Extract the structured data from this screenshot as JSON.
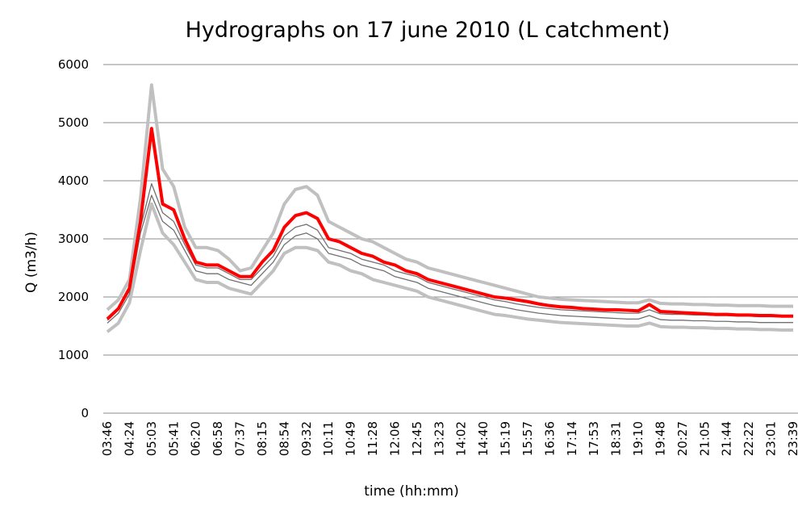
{
  "chart_data": {
    "type": "line",
    "title": "Hydrographs on 17 june 2010 (L catchment)",
    "y_label": "Q (m3/h)",
    "x_label": "time (hh:mm)",
    "categories": [
      "03:46",
      null,
      "04:24",
      null,
      "05:03",
      null,
      "05:41",
      null,
      "06:20",
      null,
      "06:58",
      null,
      "07:37",
      null,
      "08:15",
      null,
      "08:54",
      null,
      "09:32",
      null,
      "10:11",
      null,
      "10:49",
      null,
      "11:28",
      null,
      "12:06",
      null,
      "12:45",
      null,
      "13:23",
      null,
      "14:02",
      null,
      "14:40",
      null,
      "15:19",
      null,
      "15:57",
      null,
      "16:36",
      null,
      "17:14",
      null,
      "17:53",
      null,
      "18:31",
      null,
      "19:10",
      null,
      "19:48",
      null,
      "20:27",
      null,
      "21:05",
      null,
      "21:44",
      null,
      "22:22",
      null,
      "23:01",
      null,
      "23:39"
    ],
    "series": [
      {
        "color": "#c0c0c0",
        "values": [
          1780,
          1950,
          2300,
          3700,
          5650,
          4200,
          3900,
          3200,
          2850,
          2850,
          2800,
          2650,
          2450,
          2500,
          2800,
          3100,
          3600,
          3850,
          3900,
          3750,
          3300,
          3200,
          3100,
          3000,
          2950,
          2850,
          2750,
          2650,
          2600,
          2500,
          2450,
          2400,
          2350,
          2300,
          2250,
          2200,
          2150,
          2100,
          2050,
          2000,
          1980,
          1960,
          1950,
          1940,
          1930,
          1920,
          1910,
          1900,
          1900,
          1950,
          1890,
          1880,
          1880,
          1870,
          1870,
          1860,
          1860,
          1850,
          1850,
          1850,
          1840,
          1840,
          1840
        ]
      },
      {
        "color": "#c0c0c0",
        "values": [
          1400,
          1550,
          1900,
          2800,
          3600,
          3100,
          2900,
          2600,
          2300,
          2250,
          2250,
          2150,
          2100,
          2050,
          2250,
          2450,
          2750,
          2850,
          2850,
          2800,
          2600,
          2550,
          2450,
          2400,
          2300,
          2250,
          2200,
          2150,
          2100,
          2000,
          1950,
          1900,
          1850,
          1800,
          1750,
          1700,
          1680,
          1650,
          1620,
          1600,
          1580,
          1560,
          1550,
          1540,
          1530,
          1520,
          1510,
          1500,
          1500,
          1550,
          1490,
          1480,
          1480,
          1470,
          1470,
          1460,
          1460,
          1450,
          1450,
          1440,
          1440,
          1430,
          1430
        ]
      },
      {
        "color": "#707070",
        "values": [
          1550,
          1720,
          2050,
          3100,
          3750,
          3300,
          3150,
          2800,
          2450,
          2400,
          2400,
          2300,
          2250,
          2200,
          2400,
          2600,
          2900,
          3050,
          3100,
          3000,
          2750,
          2700,
          2650,
          2550,
          2500,
          2450,
          2350,
          2300,
          2250,
          2150,
          2100,
          2050,
          2000,
          1950,
          1900,
          1850,
          1820,
          1780,
          1750,
          1720,
          1700,
          1680,
          1670,
          1660,
          1650,
          1640,
          1630,
          1620,
          1620,
          1680,
          1610,
          1600,
          1600,
          1590,
          1590,
          1580,
          1580,
          1570,
          1570,
          1560,
          1560,
          1560,
          1560
        ]
      },
      {
        "color": "#707070",
        "values": [
          1600,
          1780,
          2100,
          3200,
          3950,
          3450,
          3300,
          2900,
          2550,
          2500,
          2500,
          2400,
          2300,
          2300,
          2500,
          2700,
          3050,
          3200,
          3250,
          3150,
          2850,
          2800,
          2750,
          2650,
          2600,
          2550,
          2450,
          2400,
          2350,
          2250,
          2200,
          2150,
          2100,
          2050,
          2000,
          1950,
          1920,
          1880,
          1850,
          1820,
          1800,
          1780,
          1770,
          1760,
          1750,
          1740,
          1730,
          1720,
          1720,
          1780,
          1710,
          1700,
          1700,
          1690,
          1690,
          1680,
          1680,
          1670,
          1670,
          1660,
          1660,
          1660,
          1660
        ]
      },
      {
        "color": "#ff0000",
        "values": [
          1620,
          1800,
          2150,
          3300,
          4900,
          3600,
          3500,
          3000,
          2600,
          2550,
          2550,
          2450,
          2350,
          2350,
          2600,
          2800,
          3200,
          3400,
          3450,
          3350,
          3000,
          2950,
          2850,
          2750,
          2700,
          2600,
          2550,
          2450,
          2400,
          2300,
          2250,
          2200,
          2150,
          2100,
          2050,
          2000,
          1980,
          1950,
          1920,
          1880,
          1850,
          1830,
          1820,
          1800,
          1790,
          1780,
          1780,
          1770,
          1760,
          1870,
          1750,
          1740,
          1730,
          1720,
          1710,
          1700,
          1700,
          1690,
          1690,
          1680,
          1680,
          1670,
          1670
        ]
      }
    ],
    "ylim": [
      0,
      6000
    ],
    "yticks": [
      0,
      1000,
      2000,
      3000,
      4000,
      5000,
      6000
    ],
    "grid": true
  }
}
